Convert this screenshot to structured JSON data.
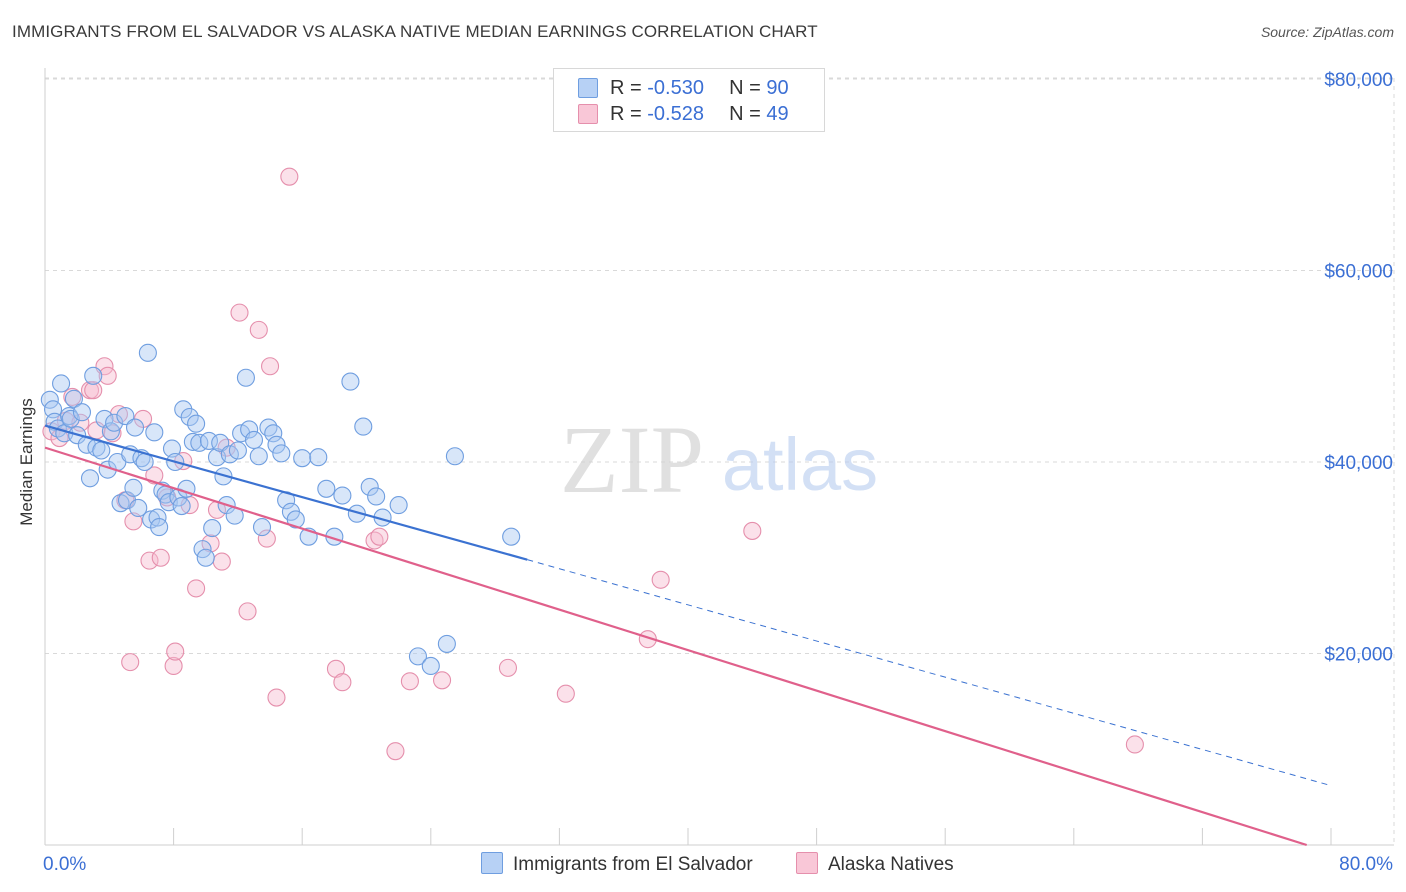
{
  "title": "IMMIGRANTS FROM EL SALVADOR VS ALASKA NATIVE MEDIAN EARNINGS CORRELATION CHART",
  "source": "Source: ZipAtlas.com",
  "watermark": {
    "zip": "ZIP",
    "atlas": "atlas"
  },
  "legend_top": [
    {
      "r_label": "R = ",
      "r_value": "-0.530",
      "n_label": "N = ",
      "n_value": "90"
    },
    {
      "r_label": "R = ",
      "r_value": "-0.528",
      "n_label": "N = ",
      "n_value": "49"
    }
  ],
  "colors": {
    "blue_fill": "#a9c8f2",
    "blue_stroke": "#6f9ee0",
    "blue_line": "#3b72d1",
    "pink_fill": "#f6bdd0",
    "pink_stroke": "#e58fac",
    "pink_line": "#e0608b",
    "axis_text": "#3b6fd4",
    "grid": "#d9d9d9"
  },
  "chart_data": {
    "type": "scatter",
    "title": "IMMIGRANTS FROM EL SALVADOR VS ALASKA NATIVE MEDIAN EARNINGS CORRELATION CHART",
    "ylabel": "Median Earnings",
    "xlabel": "",
    "x_tick_labels": [
      "0.0%",
      "80.0%"
    ],
    "y_tick_labels": [
      "$20,000",
      "$40,000",
      "$60,000",
      "$80,000"
    ],
    "y_ticks": [
      20000,
      40000,
      60000,
      80000
    ],
    "xlim": [
      0,
      80
    ],
    "ylim": [
      0,
      82000
    ],
    "grid": true,
    "legend_position": "bottom",
    "series": [
      {
        "name": "Immigrants from El Salvador",
        "color": "blue",
        "R": -0.53,
        "N": 90,
        "trend": {
          "x_solid": [
            0,
            30
          ],
          "y_solid": [
            43800,
            29800
          ],
          "x_dashed": [
            30,
            80
          ],
          "y_dashed": [
            29800,
            6200
          ]
        },
        "points": [
          [
            0.3,
            46500
          ],
          [
            0.5,
            45500
          ],
          [
            0.6,
            44200
          ],
          [
            0.8,
            43500
          ],
          [
            1.0,
            48200
          ],
          [
            1.2,
            43000
          ],
          [
            1.5,
            44800
          ],
          [
            1.6,
            44500
          ],
          [
            1.8,
            46600
          ],
          [
            2.0,
            42800
          ],
          [
            2.3,
            45200
          ],
          [
            2.6,
            41800
          ],
          [
            2.8,
            38300
          ],
          [
            3.0,
            49000
          ],
          [
            3.2,
            41500
          ],
          [
            3.5,
            41200
          ],
          [
            3.7,
            44500
          ],
          [
            3.9,
            39200
          ],
          [
            4.1,
            43200
          ],
          [
            4.3,
            44100
          ],
          [
            4.5,
            40000
          ],
          [
            4.7,
            35700
          ],
          [
            5.0,
            44800
          ],
          [
            5.1,
            36000
          ],
          [
            5.3,
            40800
          ],
          [
            5.5,
            37300
          ],
          [
            5.6,
            43600
          ],
          [
            5.8,
            35200
          ],
          [
            6.0,
            40400
          ],
          [
            6.2,
            40000
          ],
          [
            6.4,
            51400
          ],
          [
            6.6,
            34000
          ],
          [
            6.8,
            43100
          ],
          [
            7.0,
            34200
          ],
          [
            7.1,
            33200
          ],
          [
            7.3,
            37000
          ],
          [
            7.5,
            36600
          ],
          [
            7.7,
            35800
          ],
          [
            7.9,
            41400
          ],
          [
            8.1,
            40000
          ],
          [
            8.3,
            36300
          ],
          [
            8.5,
            35400
          ],
          [
            8.6,
            45500
          ],
          [
            8.8,
            37200
          ],
          [
            9.0,
            44700
          ],
          [
            9.2,
            42100
          ],
          [
            9.4,
            44000
          ],
          [
            9.6,
            42000
          ],
          [
            9.8,
            30900
          ],
          [
            10.0,
            30000
          ],
          [
            10.2,
            42200
          ],
          [
            10.4,
            33100
          ],
          [
            10.7,
            40500
          ],
          [
            10.9,
            42000
          ],
          [
            11.1,
            38500
          ],
          [
            11.3,
            35500
          ],
          [
            11.5,
            40800
          ],
          [
            11.8,
            34400
          ],
          [
            12.0,
            41200
          ],
          [
            12.2,
            43000
          ],
          [
            12.5,
            48800
          ],
          [
            12.7,
            43400
          ],
          [
            13.0,
            42300
          ],
          [
            13.3,
            40600
          ],
          [
            13.5,
            33200
          ],
          [
            13.9,
            43600
          ],
          [
            14.2,
            43000
          ],
          [
            14.4,
            41800
          ],
          [
            14.7,
            40900
          ],
          [
            15.0,
            36000
          ],
          [
            15.3,
            34800
          ],
          [
            15.6,
            34000
          ],
          [
            16.0,
            40400
          ],
          [
            16.4,
            32200
          ],
          [
            17.0,
            40500
          ],
          [
            17.5,
            37200
          ],
          [
            18.0,
            32200
          ],
          [
            18.5,
            36500
          ],
          [
            19.0,
            48400
          ],
          [
            19.4,
            34600
          ],
          [
            19.8,
            43700
          ],
          [
            20.2,
            37400
          ],
          [
            20.6,
            36400
          ],
          [
            21.0,
            34200
          ],
          [
            22.0,
            35500
          ],
          [
            23.2,
            19700
          ],
          [
            24.0,
            18700
          ],
          [
            25.0,
            21000
          ],
          [
            25.5,
            40600
          ],
          [
            29.0,
            32200
          ]
        ]
      },
      {
        "name": "Alaska Natives",
        "color": "pink",
        "R": -0.528,
        "N": 49,
        "trend": {
          "x_solid": [
            0,
            80
          ],
          "y_solid": [
            41500,
            -800
          ]
        },
        "points": [
          [
            0.4,
            43200
          ],
          [
            0.9,
            42500
          ],
          [
            1.3,
            44300
          ],
          [
            1.7,
            46800
          ],
          [
            2.2,
            44100
          ],
          [
            2.8,
            47500
          ],
          [
            3.0,
            47500
          ],
          [
            3.2,
            43300
          ],
          [
            3.7,
            50000
          ],
          [
            3.9,
            49000
          ],
          [
            4.2,
            43000
          ],
          [
            4.6,
            45000
          ],
          [
            5.0,
            36000
          ],
          [
            5.3,
            19100
          ],
          [
            5.5,
            33800
          ],
          [
            6.1,
            44500
          ],
          [
            6.5,
            29700
          ],
          [
            6.8,
            38600
          ],
          [
            7.2,
            30000
          ],
          [
            7.6,
            36300
          ],
          [
            8.0,
            18700
          ],
          [
            8.1,
            20200
          ],
          [
            8.6,
            40100
          ],
          [
            9.0,
            35500
          ],
          [
            9.4,
            26800
          ],
          [
            10.3,
            31500
          ],
          [
            10.7,
            35000
          ],
          [
            11.0,
            29600
          ],
          [
            11.3,
            41500
          ],
          [
            12.1,
            55600
          ],
          [
            12.6,
            24400
          ],
          [
            13.3,
            53800
          ],
          [
            13.8,
            32000
          ],
          [
            14.0,
            50000
          ],
          [
            14.4,
            15400
          ],
          [
            15.2,
            69800
          ],
          [
            18.1,
            18400
          ],
          [
            18.5,
            17000
          ],
          [
            20.5,
            31800
          ],
          [
            20.8,
            32200
          ],
          [
            21.8,
            9800
          ],
          [
            22.7,
            17100
          ],
          [
            24.7,
            17200
          ],
          [
            28.8,
            18500
          ],
          [
            32.4,
            15800
          ],
          [
            37.5,
            21500
          ],
          [
            38.3,
            27700
          ],
          [
            44.0,
            32800
          ],
          [
            67.8,
            10500
          ]
        ]
      }
    ]
  }
}
